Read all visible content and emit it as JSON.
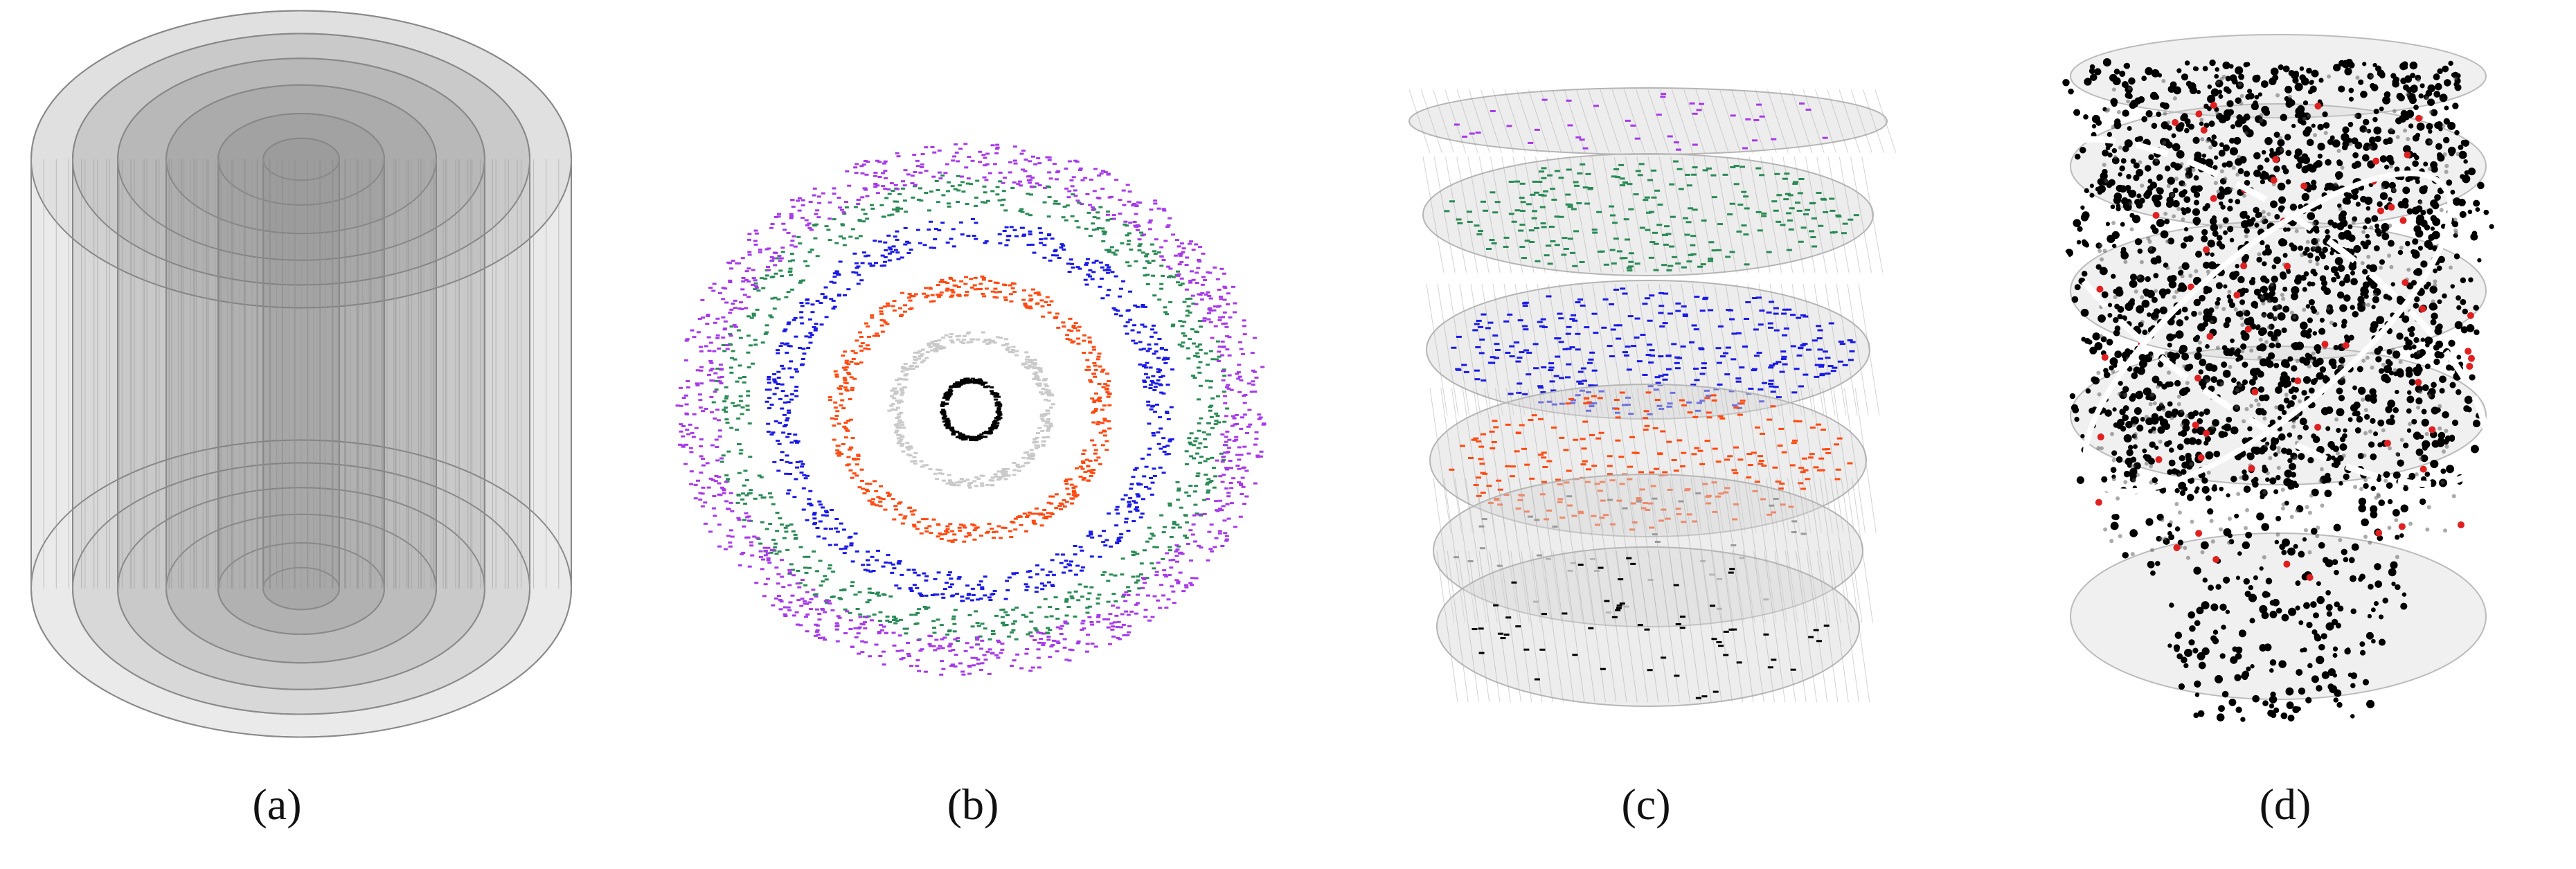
{
  "panels": [
    {
      "id": "a",
      "caption": "(a)"
    },
    {
      "id": "b",
      "caption": "(b)",
      "ring_colors": [
        "#000000",
        "#c9c9c9",
        "#ff4a12",
        "#1a1ae6",
        "#2a8a55",
        "#a63ae8"
      ]
    },
    {
      "id": "c",
      "caption": "(c)",
      "layer_colors": [
        "#a63ae8",
        "#2a8a55",
        "#1a1ae6",
        "#ff4a12",
        "#9a9a9a",
        "#000000"
      ]
    },
    {
      "id": "d",
      "caption": "(d)",
      "point_color": "#000000",
      "highlight_color": "#e02020",
      "outline_color": "#ffffff"
    }
  ]
}
